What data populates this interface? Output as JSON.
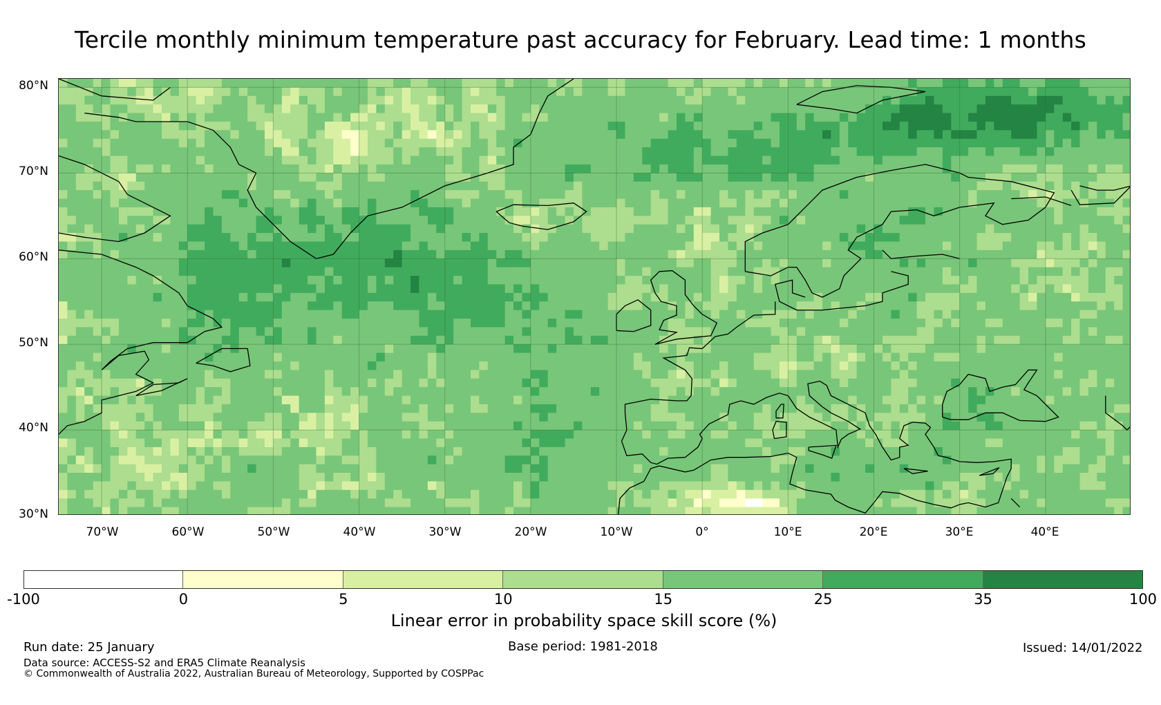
{
  "title": "Tercile monthly minimum temperature past accuracy for February. Lead time: 1 months",
  "map": {
    "lat_labels": [
      "80°N",
      "70°N",
      "60°N",
      "50°N",
      "40°N",
      "30°N"
    ],
    "lon_labels": [
      "70°W",
      "60°W",
      "50°W",
      "40°W",
      "30°W",
      "20°W",
      "10°W",
      "0°",
      "10°E",
      "20°E",
      "30°E",
      "40°E"
    ],
    "extent": {
      "lon_min": -75,
      "lon_max": 50,
      "lat_min": 30,
      "lat_max": 81
    }
  },
  "colorbar": {
    "bounds": [
      "-100",
      "0",
      "5",
      "10",
      "15",
      "25",
      "35",
      "100"
    ],
    "colors": [
      "#ffffff",
      "#ffffcc",
      "#d9f0a3",
      "#addd8e",
      "#78c679",
      "#41ab5d",
      "#238443"
    ],
    "label": "Linear error in probability space skill score (%)"
  },
  "footer": {
    "run_date": "Run date: 25 January",
    "base_period": "Base period: 1981-2018",
    "issued": "Issued: 14/01/2022",
    "data_source": "Data source: ACCESS-S2 and ERA5 Climate Reanalysis",
    "copyright": "© Commonwealth of Australia 2022, Australian Bureau of Meteorology, Supported by COSPPac"
  }
}
